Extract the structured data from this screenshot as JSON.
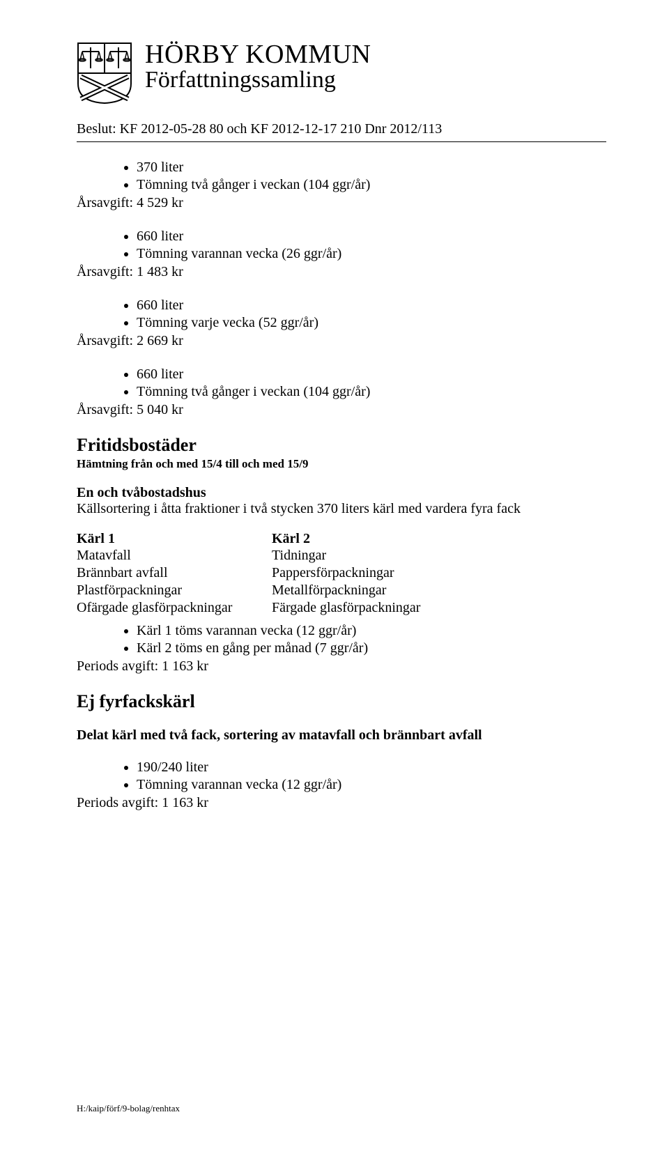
{
  "header": {
    "title_line1": "HÖRBY KOMMUN",
    "title_line2": "Författningssamling",
    "beslut": "Beslut: KF 2012-05-28 80 och KF 2012-12-17 210 Dnr 2012/113"
  },
  "blocks": [
    {
      "bullets": [
        "370 liter",
        "Tömning två gånger i veckan (104 ggr/år)"
      ],
      "fee_label": "Årsavgift: 4 529 kr"
    },
    {
      "bullets": [
        "660 liter",
        "Tömning varannan vecka (26 ggr/år)"
      ],
      "fee_label": "Årsavgift: 1 483 kr"
    },
    {
      "bullets": [
        "660 liter",
        "Tömning varje vecka (52 ggr/år)"
      ],
      "fee_label": "Årsavgift: 2 669 kr"
    },
    {
      "bullets": [
        "660 liter",
        "Tömning två gånger i veckan (104 ggr/år)"
      ],
      "fee_label": "Årsavgift: 5 040 kr"
    }
  ],
  "fritidshus": {
    "heading": "Fritidsbostäder",
    "sub": "Hämtning från och med 15/4 till och med 15/9",
    "sub2": "En och tvåbostadshus",
    "text": "Källsortering i åtta fraktioner i två stycken 370 liters kärl med vardera fyra fack"
  },
  "karl_table": {
    "col1_header": "Kärl 1",
    "col2_header": "Kärl 2",
    "rows": [
      [
        "Matavfall",
        "Tidningar"
      ],
      [
        "Brännbart avfall",
        "Pappersförpackningar"
      ],
      [
        "Plastförpackningar",
        "Metallförpackningar"
      ],
      [
        "Ofärgade glasförpackningar",
        "Färgade glasförpackningar"
      ]
    ]
  },
  "post_table": {
    "bullets": [
      "Kärl 1 töms varannan vecka (12 ggr/år)",
      "Kärl 2 töms en gång per månad (7 ggr/år)"
    ],
    "fee_label": "Periods avgift: 1 163 kr"
  },
  "ej_fyrfack": {
    "heading": "Ej fyrfackskärl",
    "sub": "Delat kärl med två fack, sortering av matavfall och brännbart avfall",
    "bullets": [
      "190/240 liter",
      "Tömning varannan vecka (12 ggr/år)"
    ],
    "fee_label": "Periods avgift: 1 163 kr"
  },
  "footer": "H:/kaip/förf/9-bolag/renhtax"
}
